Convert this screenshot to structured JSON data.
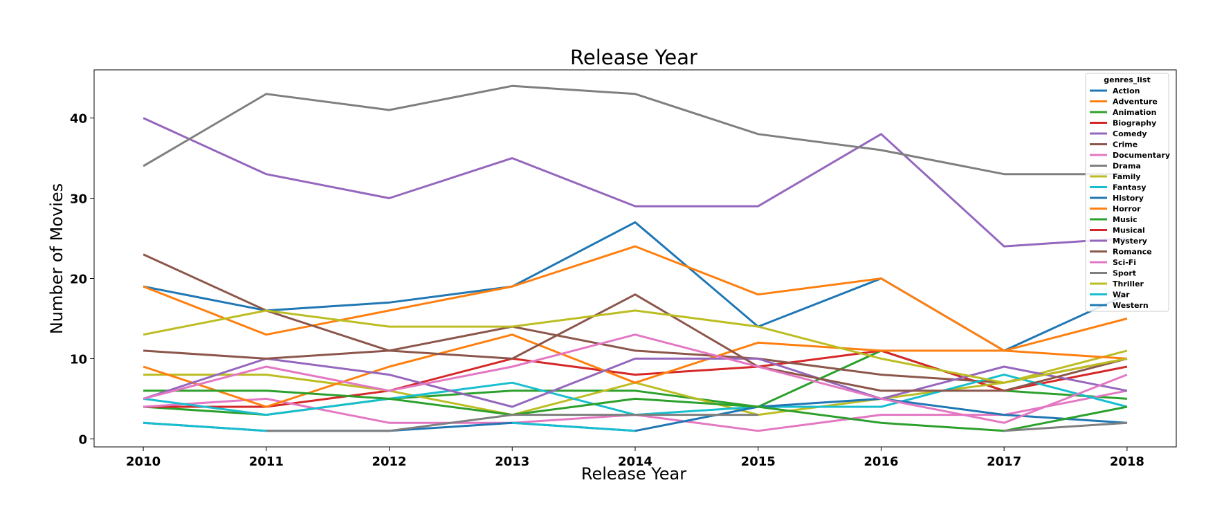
{
  "chart_data": {
    "type": "line",
    "title": "Release Year",
    "xlabel": "Release Year",
    "ylabel": "Number of Movies",
    "x": [
      2010,
      2011,
      2012,
      2013,
      2014,
      2015,
      2016,
      2017,
      2018
    ],
    "xlim": [
      2009.6,
      2018.4
    ],
    "ylim": [
      -1,
      46
    ],
    "yticks": [
      0,
      10,
      20,
      30,
      40
    ],
    "grid": false,
    "legend": {
      "title": "genres_list",
      "placement": "top-right"
    },
    "series": [
      {
        "name": "Action",
        "color": "#1f77b4",
        "values": [
          19,
          16,
          17,
          19,
          27,
          14,
          20,
          11,
          18
        ]
      },
      {
        "name": "Adventure",
        "color": "#ff7f0e",
        "values": [
          19,
          13,
          16,
          19,
          24,
          18,
          20,
          11,
          15
        ]
      },
      {
        "name": "Animation",
        "color": "#2ca02c",
        "values": [
          4,
          3,
          5,
          6,
          6,
          4,
          11,
          6,
          5
        ]
      },
      {
        "name": "Biography",
        "color": "#d62728",
        "values": [
          4,
          4,
          6,
          10,
          8,
          9,
          11,
          6,
          9
        ]
      },
      {
        "name": "Comedy",
        "color": "#9467bd",
        "values": [
          40,
          33,
          30,
          35,
          29,
          29,
          38,
          24,
          25
        ]
      },
      {
        "name": "Crime",
        "color": "#8c564b",
        "values": [
          23,
          16,
          11,
          14,
          11,
          10,
          8,
          7,
          10
        ]
      },
      {
        "name": "Documentary",
        "color": "#e377c2",
        "values": [
          4,
          5,
          2,
          2,
          3,
          1,
          3,
          3,
          6
        ]
      },
      {
        "name": "Drama",
        "color": "#7f7f7f",
        "values": [
          34,
          43,
          41,
          44,
          43,
          38,
          36,
          33,
          33
        ]
      },
      {
        "name": "Family",
        "color": "#bcbd22",
        "values": [
          8,
          8,
          6,
          3,
          7,
          3,
          5,
          7,
          11
        ]
      },
      {
        "name": "Fantasy",
        "color": "#17becf",
        "values": [
          5,
          3,
          5,
          7,
          3,
          4,
          4,
          8,
          4
        ]
      },
      {
        "name": "History",
        "color": "#1f77b4",
        "values": [
          2,
          1,
          1,
          2,
          1,
          4,
          5,
          3,
          2
        ]
      },
      {
        "name": "Horror",
        "color": "#ff7f0e",
        "values": [
          9,
          4,
          9,
          13,
          7,
          12,
          11,
          11,
          10
        ]
      },
      {
        "name": "Music",
        "color": "#2ca02c",
        "values": [
          6,
          6,
          5,
          3,
          5,
          4,
          2,
          1,
          4
        ]
      },
      {
        "name": "Musical",
        "color": "#d62728",
        "values": [
          null,
          null,
          null,
          null,
          null,
          null,
          null,
          null,
          null
        ]
      },
      {
        "name": "Mystery",
        "color": "#9467bd",
        "values": [
          5,
          10,
          8,
          4,
          10,
          10,
          5,
          9,
          6
        ]
      },
      {
        "name": "Romance",
        "color": "#8c564b",
        "values": [
          11,
          10,
          11,
          10,
          18,
          9,
          6,
          6,
          10
        ]
      },
      {
        "name": "Sci-Fi",
        "color": "#e377c2",
        "values": [
          5,
          9,
          6,
          9,
          13,
          9,
          5,
          2,
          8
        ]
      },
      {
        "name": "Sport",
        "color": "#7f7f7f",
        "values": [
          null,
          1,
          1,
          3,
          3,
          3,
          null,
          1,
          2
        ]
      },
      {
        "name": "Thriller",
        "color": "#bcbd22",
        "values": [
          13,
          16,
          14,
          14,
          16,
          14,
          10,
          7,
          10
        ]
      },
      {
        "name": "War",
        "color": "#17becf",
        "values": [
          2,
          1,
          null,
          2,
          1,
          null,
          null,
          null,
          null
        ]
      },
      {
        "name": "Western",
        "color": "#1f77b4",
        "values": [
          null,
          null,
          null,
          null,
          null,
          null,
          null,
          null,
          null
        ]
      }
    ]
  }
}
